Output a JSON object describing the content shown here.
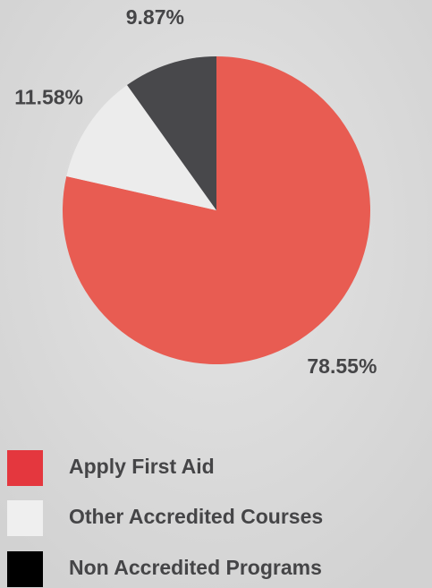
{
  "chart_data": {
    "type": "pie",
    "categories": [
      "Apply First Aid",
      "Other Accredited Courses",
      "Non Accredited Programs"
    ],
    "values": [
      78.55,
      11.58,
      9.87
    ],
    "value_labels": [
      "78.55%",
      "11.58%",
      "9.87%"
    ],
    "colors": [
      "#e85c52",
      "#ececec",
      "#48484b"
    ],
    "legend_colors": [
      "#e4373e",
      "#efefef",
      "#000000"
    ]
  }
}
